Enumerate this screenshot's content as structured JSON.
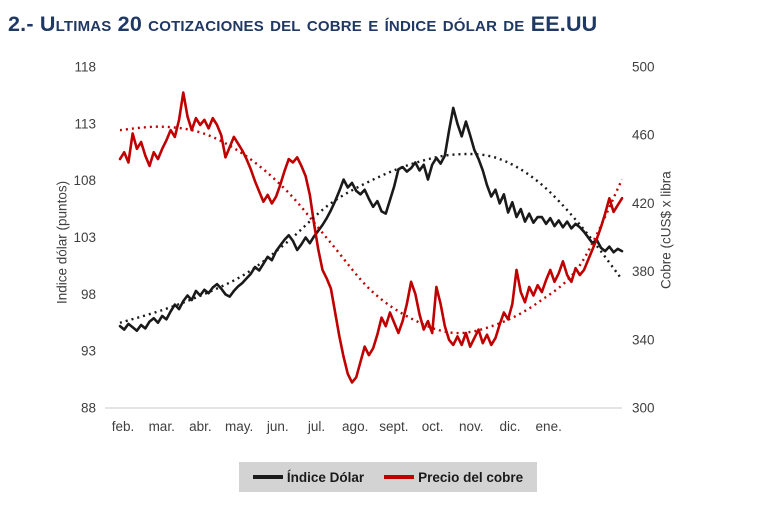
{
  "title": "2.- Ultimas 20 cotizaciones del cobre e índice dólar de EE.UU",
  "colors": {
    "title": "#1f3864",
    "dollar_line": "#1a1a1a",
    "copper_line": "#c00000",
    "axis_text": "#3f3f3f",
    "baseline": "#dcdcdc",
    "legend_bg": "#d3d3d3"
  },
  "legend": {
    "dollar_label": "Índice Dólar",
    "copper_label": "Precio del cobre"
  },
  "chart_data": {
    "type": "line",
    "title": "2.- Ultimas 20 cotizaciones del cobre e índice dólar de EE.UU",
    "grid": false,
    "legend_position": "bottom",
    "x_axis": {
      "labels": [
        "feb.",
        "mar.",
        "abr.",
        "may.",
        "jun.",
        "jul.",
        "ago.",
        "sept.",
        "oct.",
        "nov.",
        "dic.",
        "ene."
      ]
    },
    "y_left": {
      "label": "Indice dólar (puntos)",
      "min": 88,
      "max": 118,
      "ticks": [
        118,
        113,
        108,
        103,
        98,
        93,
        88
      ]
    },
    "y_right": {
      "label": "Cobre (cUS$ x libra",
      "min": 300,
      "max": 500,
      "ticks": [
        500,
        460,
        420,
        380,
        340,
        300
      ]
    },
    "series": [
      {
        "id": "dollar-index-line",
        "name": "Índice Dólar",
        "axis": "left",
        "color": "#1a1a1a",
        "style": "solid",
        "values": [
          95.2,
          94.9,
          95.4,
          95.1,
          94.8,
          95.3,
          95.0,
          95.6,
          95.9,
          95.5,
          96.1,
          95.8,
          96.5,
          97.1,
          96.7,
          97.4,
          97.9,
          97.5,
          98.3,
          97.9,
          98.4,
          98.1,
          98.6,
          98.9,
          98.5,
          98.0,
          97.8,
          98.3,
          98.7,
          99.0,
          99.4,
          99.8,
          100.4,
          100.1,
          100.7,
          101.3,
          101.0,
          101.8,
          102.3,
          102.8,
          103.2,
          102.7,
          101.9,
          102.4,
          103.0,
          102.5,
          103.1,
          103.6,
          104.1,
          104.7,
          105.4,
          106.2,
          107.1,
          108.1,
          107.4,
          107.8,
          107.1,
          106.8,
          107.2,
          106.4,
          105.7,
          106.2,
          105.3,
          105.1,
          106.3,
          107.5,
          109.0,
          109.2,
          108.8,
          109.1,
          109.6,
          108.9,
          109.4,
          108.1,
          109.4,
          110.0,
          109.5,
          110.2,
          112.4,
          114.4,
          113.0,
          111.9,
          113.2,
          112.0,
          110.7,
          109.9,
          108.9,
          107.6,
          106.6,
          107.2,
          106.0,
          106.8,
          105.2,
          106.1,
          104.8,
          105.5,
          104.4,
          105.1,
          104.3,
          104.8,
          104.8,
          104.2,
          104.7,
          104.0,
          104.5,
          103.9,
          104.4,
          103.8,
          104.2,
          103.9,
          103.5,
          103.0,
          102.5,
          102.8,
          102.1,
          101.8,
          102.2,
          101.7,
          102.0,
          101.8
        ]
      },
      {
        "id": "copper-price-line",
        "name": "Precio del cobre",
        "axis": "right",
        "color": "#c00000",
        "style": "solid",
        "values": [
          446,
          450,
          444,
          461,
          452,
          456,
          448,
          442,
          450,
          446,
          452,
          457,
          463,
          459,
          469,
          485,
          471,
          463,
          470,
          466,
          469,
          464,
          470,
          466,
          460,
          447,
          453,
          459,
          455,
          451,
          446,
          440,
          433,
          427,
          421,
          425,
          420,
          424,
          431,
          439,
          446,
          444,
          447,
          442,
          436,
          425,
          408,
          393,
          381,
          376,
          370,
          356,
          342,
          330,
          320,
          315,
          318,
          327,
          336,
          331,
          335,
          343,
          353,
          348,
          356,
          350,
          344,
          351,
          361,
          374,
          367,
          355,
          346,
          351,
          344,
          371,
          361,
          348,
          340,
          337,
          342,
          337,
          344,
          336,
          341,
          346,
          338,
          343,
          337,
          341,
          349,
          356,
          352,
          361,
          381,
          368,
          362,
          371,
          366,
          372,
          368,
          375,
          381,
          374,
          379,
          386,
          378,
          374,
          382,
          378,
          381,
          387,
          393,
          399,
          406,
          414,
          423,
          415,
          419,
          423
        ]
      },
      {
        "id": "dollar-index-trend",
        "name": "Tendencia Índice Dólar",
        "axis": "left",
        "color": "#1a1a1a",
        "style": "dotted",
        "values": [
          95.5,
          96.6,
          98.0,
          99.8,
          102.6,
          105.9,
          108.0,
          109.5,
          110.3,
          110.0,
          107.9,
          104.1,
          99.3
        ]
      },
      {
        "id": "copper-price-trend",
        "name": "Tendencia Precio del cobre",
        "axis": "right",
        "color": "#c00000",
        "style": "dotted",
        "values": [
          463,
          465,
          461,
          448,
          427,
          398,
          369,
          352,
          344,
          349,
          362,
          384,
          434
        ]
      }
    ]
  }
}
